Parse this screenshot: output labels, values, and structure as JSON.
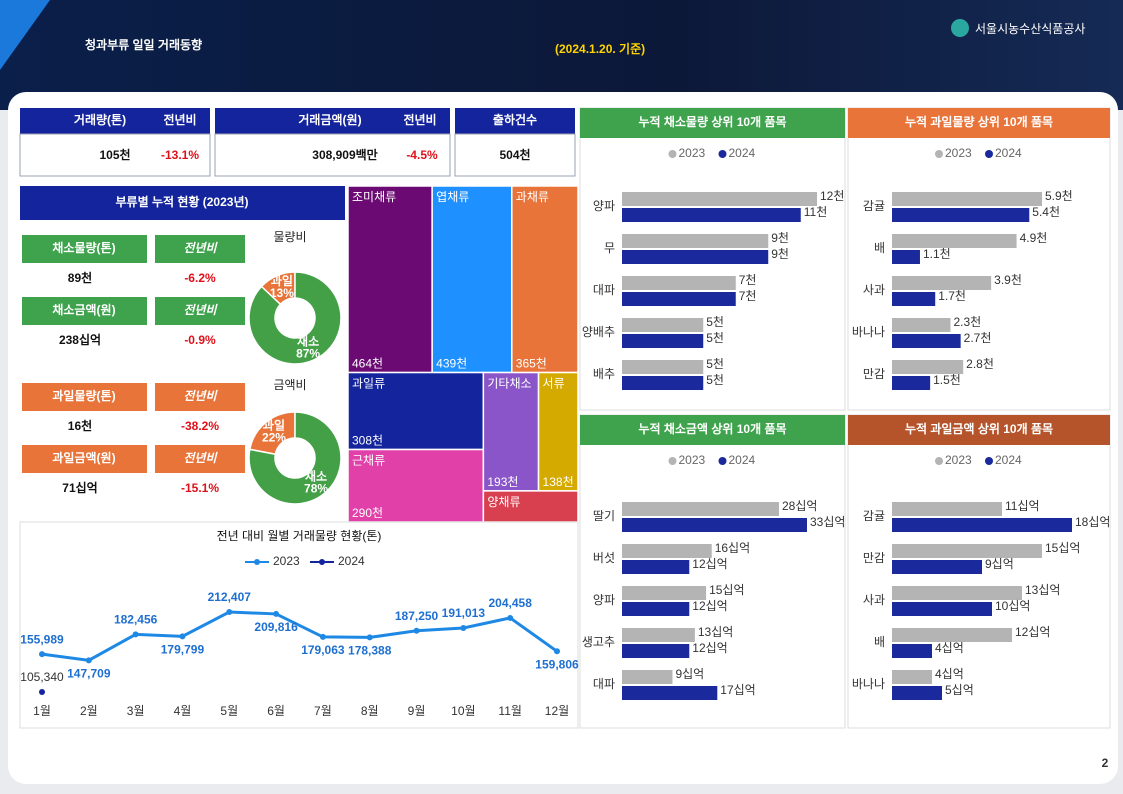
{
  "header": {
    "title": "청과부류 일일 거래동향",
    "date": "(2024.1.20. 기준)",
    "org": "서울시농수산식품공사",
    "page": "2"
  },
  "kpi": {
    "volume": {
      "label": "거래량(톤)",
      "compare": "전년비",
      "value": "105천",
      "change": "-13.1%"
    },
    "amount": {
      "label": "거래금액(원)",
      "compare": "전년비",
      "value": "308,909백만",
      "change": "-4.5%"
    },
    "shipments": {
      "label": "출하건수",
      "value": "504천"
    }
  },
  "summary": {
    "title": "부류별 누적 현황 (2023년)",
    "veg": [
      {
        "label": "채소물량(톤)",
        "compare": "전년비",
        "value": "89천",
        "change": "-6.2%"
      },
      {
        "label": "채소금액(원)",
        "compare": "전년비",
        "value": "238십억",
        "change": "-0.9%"
      }
    ],
    "fruit": [
      {
        "label": "과일물량(톤)",
        "compare": "전년비",
        "value": "16천",
        "change": "-38.2%"
      },
      {
        "label": "과일금액(원)",
        "compare": "전년비",
        "value": "71십억",
        "change": "-15.1%"
      }
    ]
  },
  "chart_data": [
    {
      "type": "pie",
      "title": "물량비",
      "categories": [
        "과일",
        "채소"
      ],
      "values": [
        13,
        87
      ],
      "value_labels": [
        "13%",
        "87%"
      ],
      "colors": [
        "#e8743a",
        "#43a047"
      ]
    },
    {
      "type": "pie",
      "title": "금액비",
      "categories": [
        "과일",
        "채소"
      ],
      "values": [
        22,
        78
      ],
      "value_labels": [
        "22%",
        "78%"
      ],
      "colors": [
        "#e8743a",
        "#43a047"
      ]
    },
    {
      "type": "treemap",
      "categories": [
        "조미채류",
        "엽채류",
        "과채류",
        "과일류",
        "근채류",
        "기타채소",
        "서류",
        "양채류"
      ],
      "values": [
        464,
        439,
        365,
        308,
        290,
        193,
        138,
        87
      ],
      "value_labels": [
        "464천",
        "439천",
        "365천",
        "308천",
        "290천",
        "193천",
        "138천",
        null
      ],
      "colors": [
        "#6a0a72",
        "#1e90ff",
        "#e8743a",
        "#14249c",
        "#e040a8",
        "#8a55c8",
        "#d4aa00",
        "#d84050"
      ]
    },
    {
      "type": "line",
      "title": "전년 대비 월별 거래물량 현황(톤)",
      "categories": [
        "1월",
        "2월",
        "3월",
        "4월",
        "5월",
        "6월",
        "7월",
        "8월",
        "9월",
        "10월",
        "11월",
        "12월"
      ],
      "series": [
        {
          "name": "2023",
          "color": "#1e88e5",
          "values": [
            155989,
            147709,
            182456,
            179799,
            212407,
            209816,
            179063,
            178388,
            187250,
            191013,
            204458,
            159806
          ],
          "value_labels": [
            "155,989",
            "147,709",
            "182,456",
            "179,799",
            "212,407",
            "209,816",
            "179,063",
            "178,388",
            "187,250",
            "191,013",
            "204,458",
            "159,806"
          ]
        },
        {
          "name": "2024",
          "color": "#14249c",
          "values": [
            105340,
            null,
            null,
            null,
            null,
            null,
            null,
            null,
            null,
            null,
            null,
            null
          ],
          "value_labels": [
            "105,340",
            null,
            null,
            null,
            null,
            null,
            null,
            null,
            null,
            null,
            null,
            null
          ]
        }
      ]
    },
    {
      "type": "hbar",
      "title": "누적 채소물량 상위 10개 품목",
      "header_color": "#3fa34d",
      "categories": [
        "양파",
        "무",
        "대파",
        "양배추",
        "배추"
      ],
      "series": [
        {
          "name": "2023",
          "color": "#b4b4b4",
          "values": [
            12,
            9,
            7,
            5,
            5
          ],
          "value_labels": [
            "12천",
            "9천",
            "7천",
            "5천",
            "5천"
          ]
        },
        {
          "name": "2024",
          "color": "#1a2a9c",
          "values": [
            11,
            9,
            7,
            5,
            5
          ],
          "value_labels": [
            "11천",
            "9천",
            "7천",
            "5천",
            "5천"
          ]
        }
      ]
    },
    {
      "type": "hbar",
      "title": "누적 과일물량 상위 10개 품목",
      "header_color": "#e8743a",
      "categories": [
        "감귤",
        "배",
        "사과",
        "바나나",
        "만감"
      ],
      "series": [
        {
          "name": "2023",
          "color": "#b4b4b4",
          "values": [
            5.9,
            4.9,
            3.9,
            2.3,
            2.8
          ],
          "value_labels": [
            "5.9천",
            "4.9천",
            "3.9천",
            "2.3천",
            "2.8천"
          ]
        },
        {
          "name": "2024",
          "color": "#1a2a9c",
          "values": [
            5.4,
            1.1,
            1.7,
            2.7,
            1.5
          ],
          "value_labels": [
            "5.4천",
            "1.1천",
            "1.7천",
            "2.7천",
            "1.5천"
          ]
        }
      ]
    },
    {
      "type": "hbar",
      "title": "누적 채소금액 상위 10개 품목",
      "header_color": "#3fa34d",
      "categories": [
        "딸기",
        "버섯",
        "양파",
        "생고추",
        "대파"
      ],
      "series": [
        {
          "name": "2023",
          "color": "#b4b4b4",
          "values": [
            28,
            16,
            15,
            13,
            9
          ],
          "value_labels": [
            "28십억",
            "16십억",
            "15십억",
            "13십억",
            "9십억"
          ]
        },
        {
          "name": "2024",
          "color": "#1a2a9c",
          "values": [
            33,
            12,
            12,
            12,
            17
          ],
          "value_labels": [
            "33십억",
            "12십억",
            "12십억",
            "12십억",
            "17십억"
          ]
        }
      ]
    },
    {
      "type": "hbar",
      "title": "누적 과일금액 상위 10개 품목",
      "header_color": "#b5542a",
      "categories": [
        "감귤",
        "만감",
        "사과",
        "배",
        "바나나"
      ],
      "series": [
        {
          "name": "2023",
          "color": "#b4b4b4",
          "values": [
            11,
            15,
            13,
            12,
            4
          ],
          "value_labels": [
            "11십억",
            "15십억",
            "13십억",
            "12십억",
            "4십억"
          ]
        },
        {
          "name": "2024",
          "color": "#1a2a9c",
          "values": [
            18,
            9,
            10,
            4,
            5
          ],
          "value_labels": [
            "18십억",
            "9십억",
            "10십억",
            "4십억",
            "5십억"
          ]
        }
      ]
    }
  ]
}
